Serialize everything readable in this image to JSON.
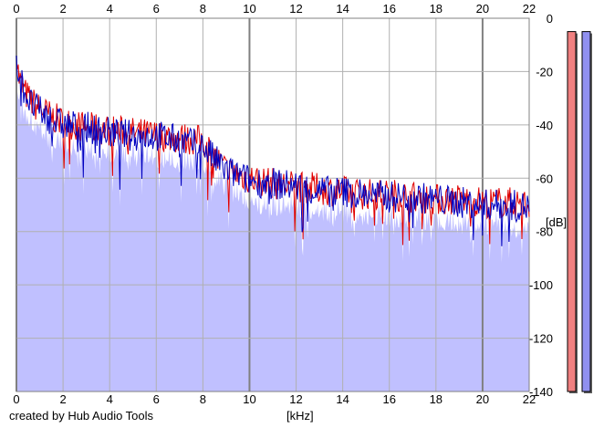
{
  "credit": "created by Hub Audio Tools",
  "chart_data": {
    "type": "area",
    "title": "",
    "xlabel": "[kHz]",
    "ylabel": "[dB]",
    "xlim": [
      0,
      22
    ],
    "ylim": [
      -140,
      0
    ],
    "x_ticks": [
      0,
      2,
      4,
      6,
      8,
      10,
      12,
      14,
      16,
      18,
      20,
      22
    ],
    "y_ticks": [
      0,
      -20,
      -40,
      -60,
      -80,
      -100,
      -120,
      -140
    ],
    "grid": true,
    "colors": {
      "area_fill": "#c0c0ff",
      "left_channel": "#e00000",
      "right_channel": "#0000c0",
      "grid": "#b0b0b0",
      "grid_major": "#808080",
      "meter_left": "#f08080",
      "meter_right": "#9090f0"
    },
    "x": [
      0,
      0.1,
      0.3,
      0.6,
      1,
      1.5,
      2,
      3,
      4,
      5,
      6,
      7,
      8,
      8.5,
      9,
      10,
      11,
      12,
      13,
      14,
      15,
      16,
      17,
      18,
      19,
      20,
      21,
      22
    ],
    "series": [
      {
        "values": [
          -13,
          -22,
          -27,
          -31,
          -34,
          -37,
          -39,
          -41,
          -42,
          -43,
          -44,
          -45,
          -46,
          -52,
          -57,
          -60,
          -62,
          -63,
          -64,
          -65,
          -66,
          -66,
          -67,
          -68,
          -68,
          -69,
          -69,
          -70
        ]
      },
      {
        "values": [
          -14,
          -21,
          -26,
          -32,
          -35,
          -38,
          -40,
          -41,
          -43,
          -44,
          -44,
          -46,
          -48,
          -53,
          -57,
          -61,
          -62,
          -63,
          -65,
          -65,
          -66,
          -67,
          -67,
          -68,
          -69,
          -70,
          -70,
          -71
        ]
      }
    ],
    "level_meters": [
      {
        "value_db": -5
      },
      {
        "value_db": -5
      }
    ]
  }
}
